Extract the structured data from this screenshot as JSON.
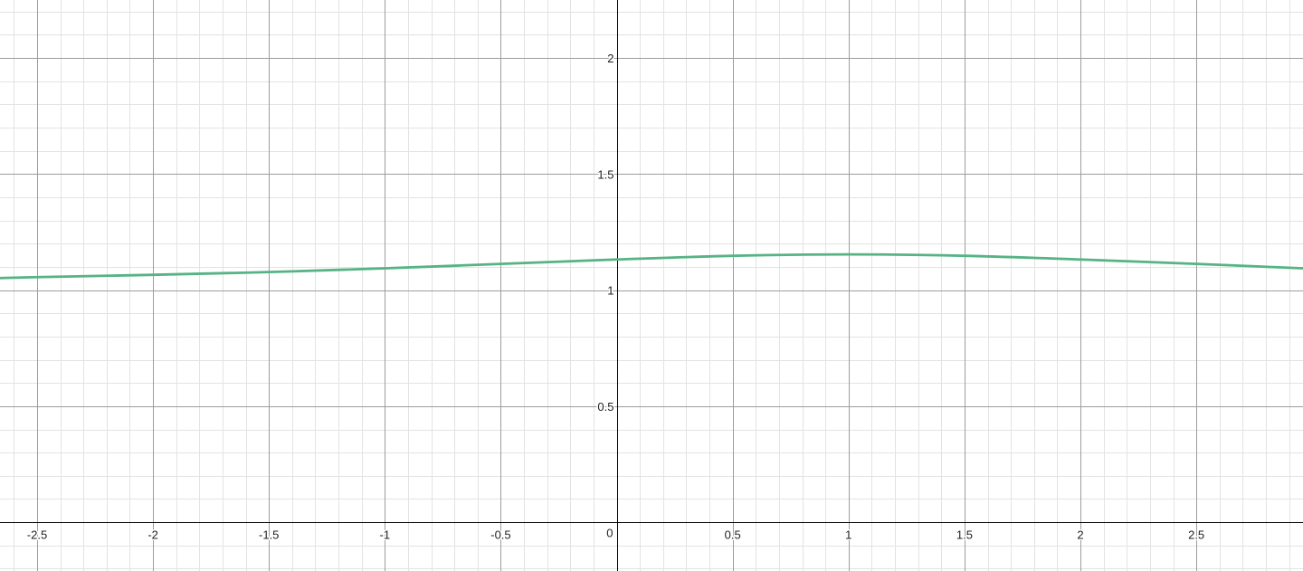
{
  "chart_data": {
    "type": "line",
    "title": "",
    "xlabel": "",
    "ylabel": "",
    "xlim": [
      -2.66,
      2.96
    ],
    "ylim": [
      -0.21,
      2.25
    ],
    "grid": true,
    "x_ticks": [
      {
        "value": -2.5,
        "label": "-2.5"
      },
      {
        "value": -2,
        "label": "-2"
      },
      {
        "value": -1.5,
        "label": "-1.5"
      },
      {
        "value": -1,
        "label": "-1"
      },
      {
        "value": -0.5,
        "label": "-0.5"
      },
      {
        "value": 0.5,
        "label": "0.5"
      },
      {
        "value": 1,
        "label": "1"
      },
      {
        "value": 1.5,
        "label": "1.5"
      },
      {
        "value": 2,
        "label": "2"
      },
      {
        "value": 2.5,
        "label": "2.5"
      }
    ],
    "y_ticks": [
      {
        "value": 0.5,
        "label": "0.5"
      },
      {
        "value": 1,
        "label": "1"
      },
      {
        "value": 1.5,
        "label": "1.5"
      },
      {
        "value": 2,
        "label": "2"
      }
    ],
    "origin_label": "0",
    "series": [
      {
        "color": "#56b384",
        "x": [
          -2.66,
          -2.5,
          -2.0,
          -1.5,
          -1.0,
          -0.5,
          0.0,
          0.5,
          1.0,
          1.5,
          2.0,
          2.5,
          2.96
        ],
        "y": [
          1.052,
          1.056,
          1.066,
          1.078,
          1.094,
          1.113,
          1.132,
          1.148,
          1.154,
          1.148,
          1.132,
          1.113,
          1.094
        ]
      }
    ]
  }
}
